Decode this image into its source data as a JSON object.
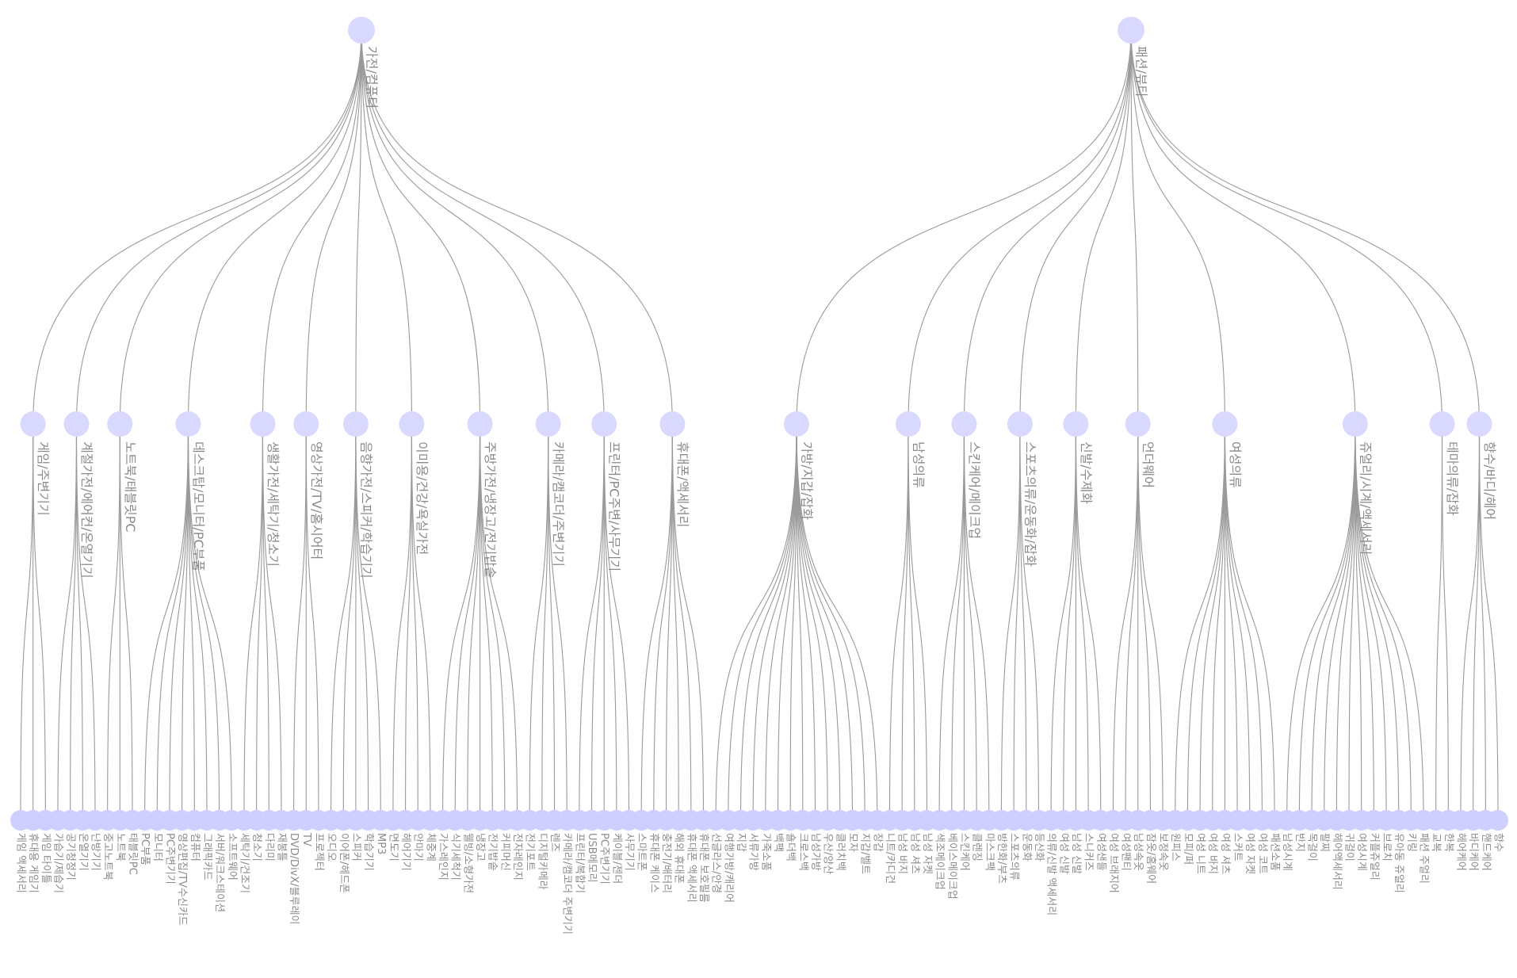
{
  "roots": [
    {
      "label": "가전/컴퓨터",
      "children": [
        {
          "label": "게임/주변기기",
          "leaves": [
            "게임 액세서리",
            "휴대용 게임기",
            "게임 타이틀"
          ]
        },
        {
          "label": "계절가전/에어컨/온열기기",
          "leaves": [
            "가습기/제습기",
            "공기청정기",
            "온열기기",
            "난방기기"
          ]
        },
        {
          "label": "노트북/태블릿PC",
          "leaves": [
            "중고노트북",
            "노트북",
            "태블릿PC"
          ]
        },
        {
          "label": "데스크탑/모니터/PC부품",
          "leaves": [
            "PC부품",
            "모니터",
            "PC주변기기",
            "영상편집/TV수신카드",
            "컴퓨터",
            "그래픽카드",
            "서버/워크스테이션",
            "소프트웨어"
          ]
        },
        {
          "label": "생활가전/세탁기/청소기",
          "leaves": [
            "세탁기/건조기",
            "청소기",
            "다리미",
            "재봉틀"
          ]
        },
        {
          "label": "영상가전/TV/홈시어터",
          "leaves": [
            "DVD/DivX/블루레이",
            "TV",
            "프로젝터"
          ]
        },
        {
          "label": "음향가전/스피커/학습기기",
          "leaves": [
            "오디오",
            "이어폰/헤드폰",
            "스피커",
            "학습기기",
            "MP3"
          ]
        },
        {
          "label": "이미용/건강/욕실가전",
          "leaves": [
            "면도기",
            "헤어기기",
            "안마기",
            "체중계"
          ]
        },
        {
          "label": "주방가전/냉장고/전기밥솥",
          "leaves": [
            "가스레인지",
            "식기세척기",
            "웰빙/소형가전",
            "냉장고",
            "전기밥솥",
            "커피머신",
            "전자레인지"
          ]
        },
        {
          "label": "카메라/캠코더/주변기기",
          "leaves": [
            "전기포트",
            "디지털카메라",
            "렌즈",
            "카메라/캠코더 주변기기"
          ]
        },
        {
          "label": "프린터/PC주변/사무기기",
          "leaves": [
            "프린터/복합기",
            "USB메모리",
            "PC주변기기",
            "케이블/젠더",
            "사무기기"
          ]
        },
        {
          "label": "휴대폰/액세서리",
          "leaves": [
            "스마트폰",
            "휴대폰 케이스",
            "충전기/배터리",
            "해외 휴대폰",
            "휴대폰 액세서리",
            "휴대폰 보호필름"
          ]
        }
      ]
    },
    {
      "label": "패션/뷰티",
      "children": [
        {
          "label": "가방/지갑/잡화",
          "leaves": [
            "선글라스/안경",
            "여행가방/캐리어",
            "지갑",
            "서류가방",
            "가죽소품",
            "백팩",
            "숄더백",
            "크로스백",
            "남성가방",
            "우산/양산",
            "클러치백",
            "모자",
            "지갑/벨트",
            "장갑"
          ]
        },
        {
          "label": "남성의류",
          "leaves": [
            "니트/카디건",
            "남성 바지",
            "남성 셔츠",
            "남성 자켓"
          ]
        },
        {
          "label": "스킨케어/메이크업",
          "leaves": [
            "색조메이크업",
            "베이스메이크업",
            "스킨케어",
            "클렌징",
            "마스크팩"
          ]
        },
        {
          "label": "스포츠의류/운동화/잡화",
          "leaves": [
            "방한화/부츠",
            "스포츠의류",
            "운동화",
            "등산화"
          ]
        },
        {
          "label": "신발/수제화",
          "leaves": [
            "의류/신발 액세서리",
            "여성 신발",
            "남성 신발",
            "스니커즈",
            "여성샌들"
          ]
        },
        {
          "label": "언더웨어",
          "leaves": [
            "여성 브래지어",
            "여성팬티",
            "남성속옷",
            "잠옷/홈웨어",
            "보정속옷"
          ]
        },
        {
          "label": "여성의류",
          "leaves": [
            "원피스",
            "모피/퍼",
            "여성 니트",
            "여성 바지",
            "여성 셔츠",
            "스커트",
            "여성 자켓",
            "여성 코트",
            "패션소품"
          ]
        },
        {
          "label": "쥬얼리/시계/액세서리",
          "leaves": [
            "남성시계",
            "반지",
            "목걸이",
            "팔찌",
            "헤어액세서리",
            "귀걸이",
            "여성시계",
            "커플쥬얼리",
            "브로치",
            "유아동 쥬얼리",
            "키링",
            "패션 주얼리"
          ]
        },
        {
          "label": "테마의류/잡화",
          "leaves": [
            "교복",
            "한복"
          ]
        },
        {
          "label": "향수/바디/헤어",
          "leaves": [
            "헤어케어",
            "바디케어",
            "핸드케어",
            "향수"
          ]
        }
      ]
    }
  ]
}
